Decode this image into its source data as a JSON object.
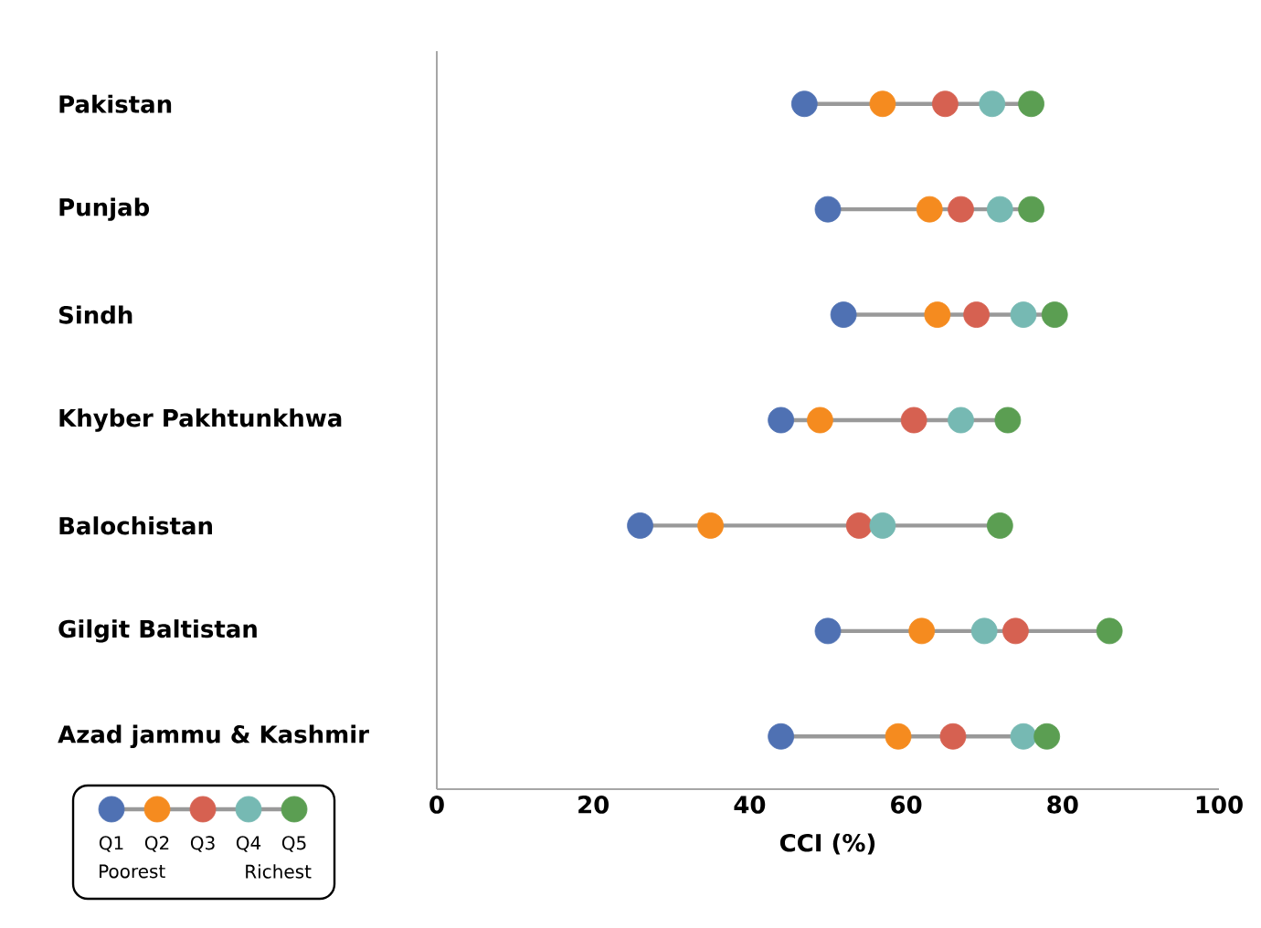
{
  "chart_data": {
    "type": "scatter",
    "orientation": "horizontal",
    "xlabel": "CCI (%)",
    "marker": "circle",
    "legend": "bottom left",
    "categories": [
      "Pakistan",
      "Punjab",
      "Sindh",
      "Khyber Pakhtunkhwa",
      "Balochistan",
      "Gilgit Baltistan",
      "Azad jammu & Kashmir"
    ],
    "xlim": [
      0,
      100
    ],
    "xticks": [
      0,
      20,
      40,
      60,
      80,
      100
    ],
    "annotations": [
      "Poorest",
      "Richest"
    ],
    "series": [
      {
        "name": "Q1",
        "color": "#4f71b3",
        "values": [
          47,
          50,
          52,
          44,
          26,
          50,
          44
        ]
      },
      {
        "name": "Q2",
        "color": "#f58b1f",
        "values": [
          57,
          63,
          64,
          49,
          35,
          62,
          59
        ]
      },
      {
        "name": "Q3",
        "color": "#d66151",
        "values": [
          65,
          67,
          69,
          61,
          54,
          74,
          66
        ]
      },
      {
        "name": "Q4",
        "color": "#76b9b3",
        "values": [
          71,
          72,
          75,
          67,
          57,
          70,
          75
        ]
      },
      {
        "name": "Q5",
        "color": "#5b9e52",
        "values": [
          76,
          76,
          79,
          73,
          72,
          86,
          78
        ]
      }
    ]
  }
}
